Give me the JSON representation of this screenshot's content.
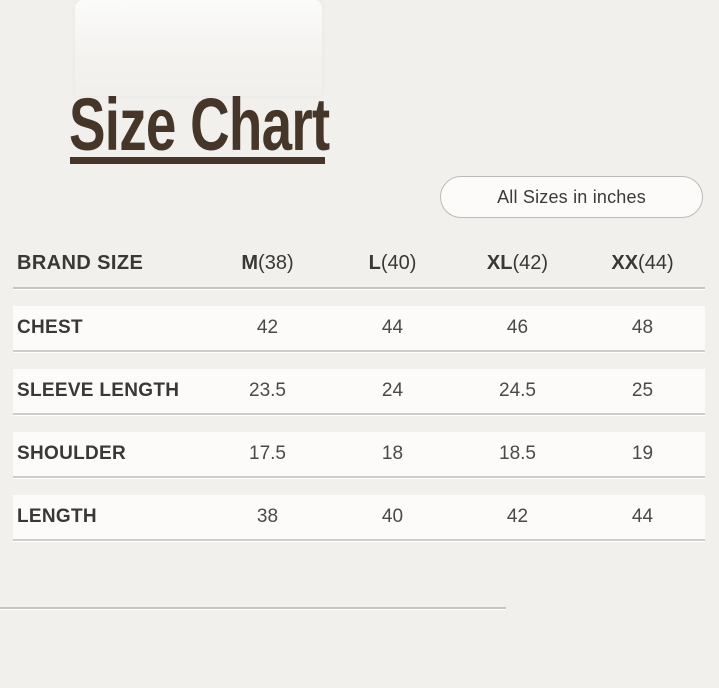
{
  "colors": {
    "background": "#f1f0ec",
    "accent_brown": "#46362a",
    "band": "#fcfbfa",
    "divider": "#c6c4c0",
    "text_dark": "#3a3835",
    "text_value": "#4b4946"
  },
  "title": {
    "text": "Size Chart"
  },
  "badge": {
    "text": "All Sizes in inches"
  },
  "table": {
    "header_label": "BRAND SIZE",
    "columns": [
      {
        "size": "M",
        "paren": "(38)"
      },
      {
        "size": "L",
        "paren": "(40)"
      },
      {
        "size": "XL",
        "paren": "(42)"
      },
      {
        "size": "XX",
        "paren": "(44)"
      }
    ],
    "rows": [
      {
        "label": "CHEST",
        "values": [
          "42",
          "44",
          "46",
          "48"
        ]
      },
      {
        "label": "SLEEVE LENGTH",
        "values": [
          "23.5",
          "24",
          "24.5",
          "25"
        ]
      },
      {
        "label": "SHOULDER",
        "values": [
          "17.5",
          "18",
          "18.5",
          "19"
        ]
      },
      {
        "label": "LENGTH",
        "values": [
          "38",
          "40",
          "42",
          "44"
        ]
      }
    ]
  }
}
